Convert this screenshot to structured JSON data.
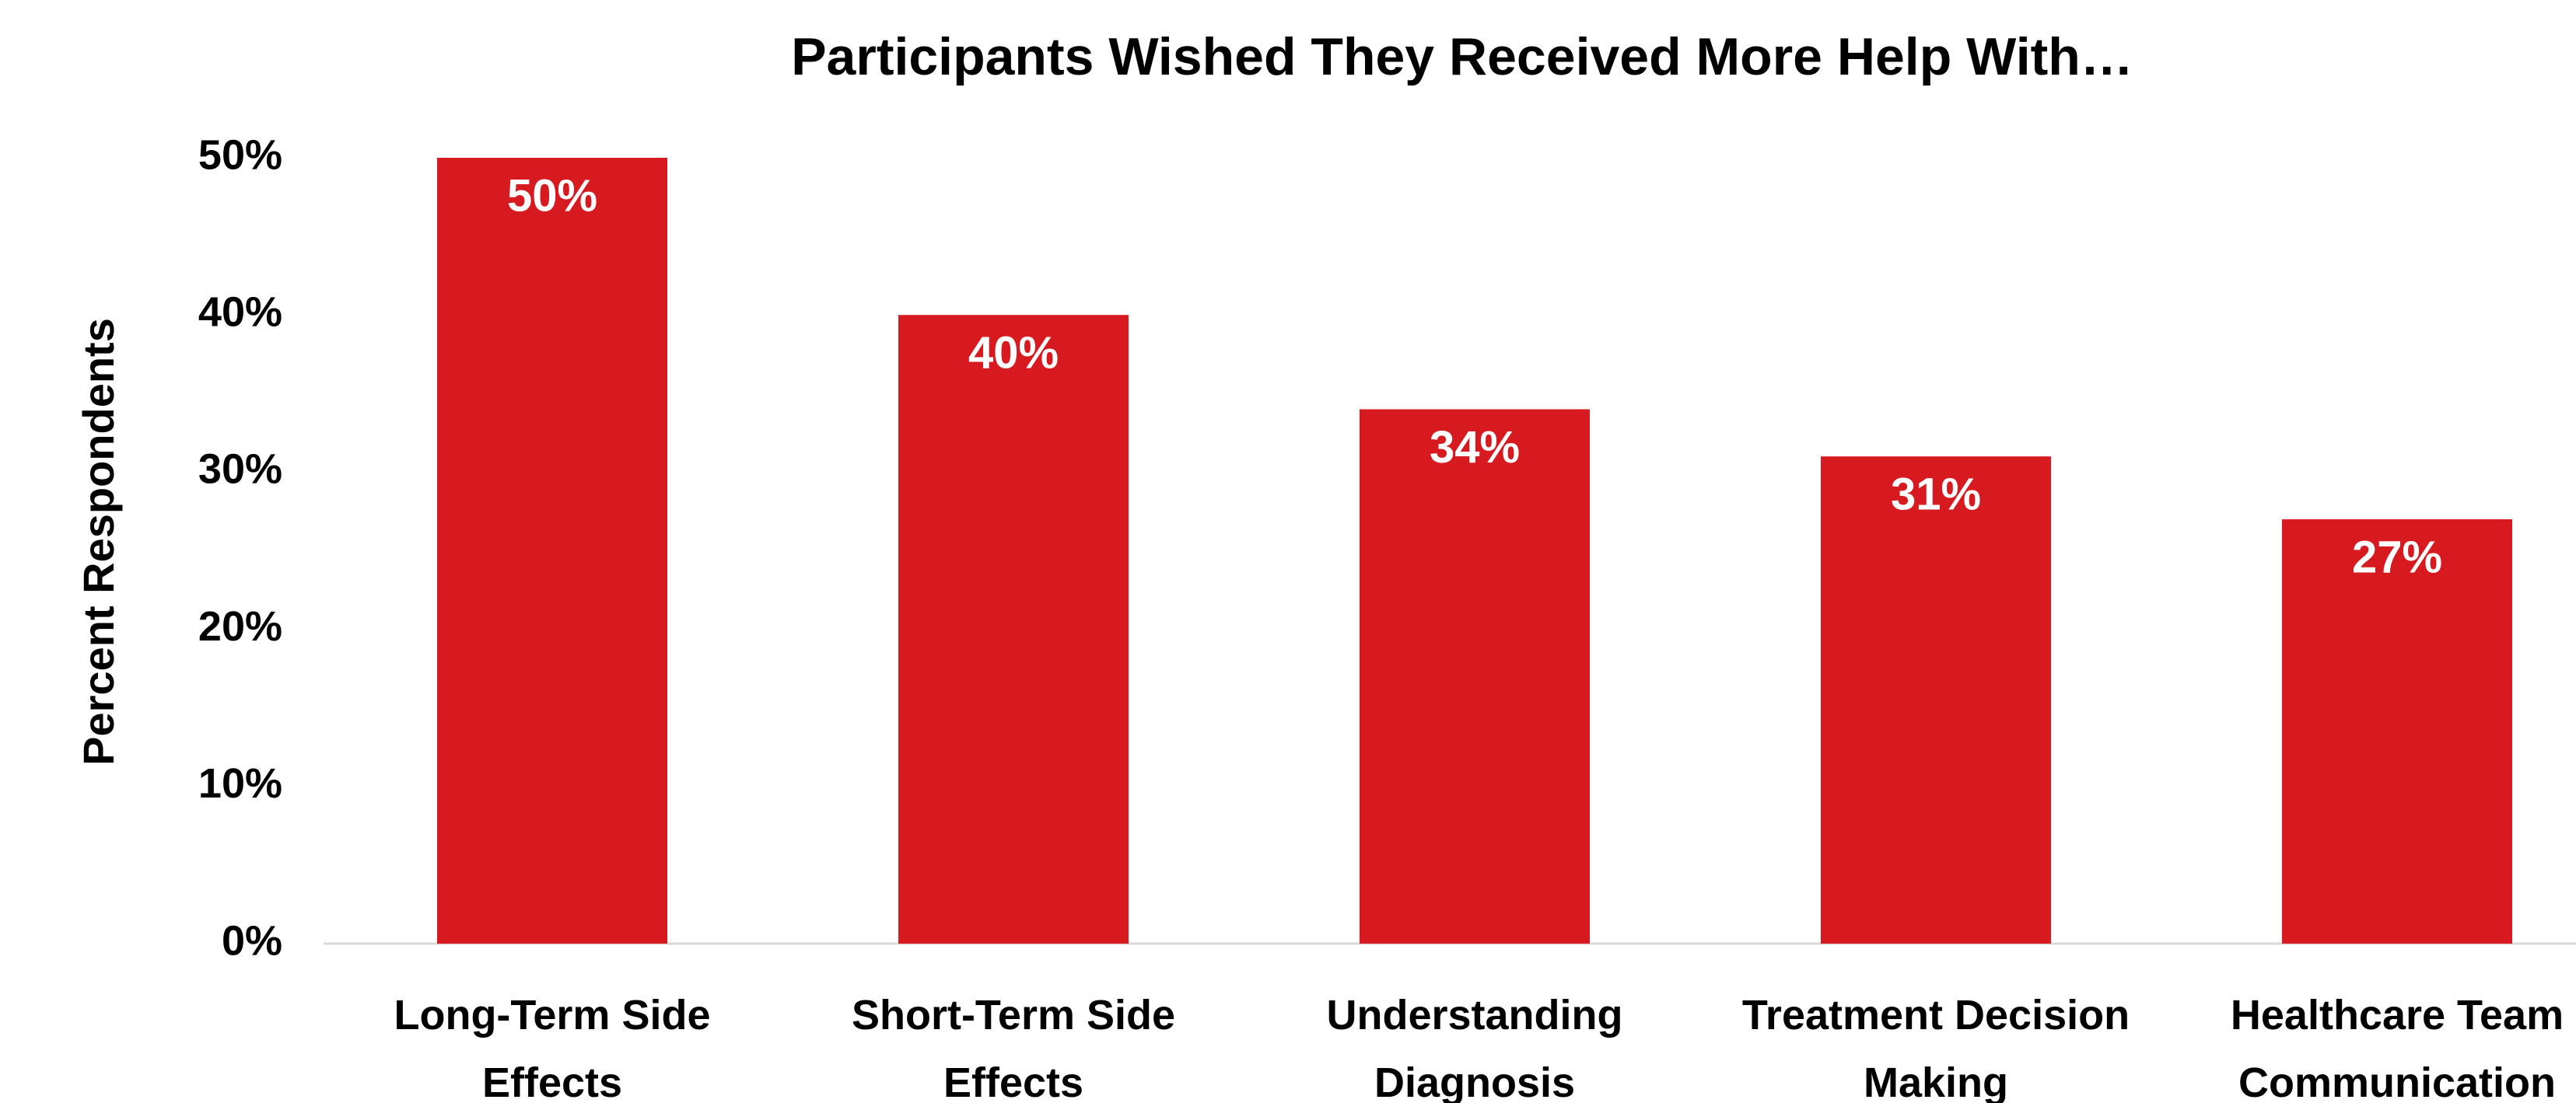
{
  "chart_data": {
    "type": "bar",
    "title": "Participants Wished They Received More Help With…",
    "y_label": "Percent Respondents",
    "categories": [
      "Long-Term Side Effects",
      "Short-Term Side Effects",
      "Understanding Diagnosis",
      "Treatment Decision Making",
      "Healthcare Team Communication"
    ],
    "values": [
      50,
      40,
      34,
      31,
      27
    ],
    "value_labels": [
      "50%",
      "40%",
      "34%",
      "31%",
      "27%"
    ],
    "color": "#d71920",
    "ylim": [
      0,
      50
    ],
    "yticks": [
      {
        "value": 0,
        "label": "0%"
      },
      {
        "value": 10,
        "label": "10%"
      },
      {
        "value": 20,
        "label": "20%"
      },
      {
        "value": 30,
        "label": "30%"
      },
      {
        "value": 40,
        "label": "40%"
      },
      {
        "value": 50,
        "label": "50%"
      }
    ],
    "grid": false
  }
}
